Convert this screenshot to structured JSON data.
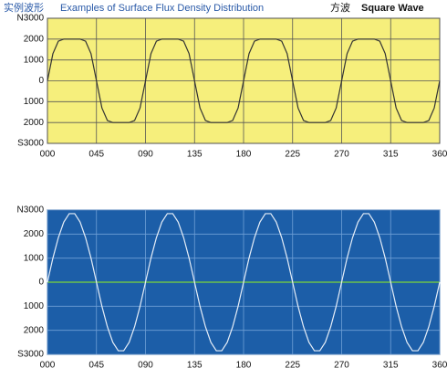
{
  "header": {
    "label_cn": "实例波形",
    "title": "Examples of Surface Flux Density Distribution",
    "wave_cn": "方波",
    "wave_en": "Square Wave"
  },
  "chart_data": [
    {
      "type": "line",
      "background": "#f6ef7c",
      "grid_color": "#555555",
      "border_color": "#444444",
      "tick_label_color": "#111111",
      "x": [
        0,
        5,
        10,
        15,
        20,
        25,
        30,
        35,
        40,
        45,
        50,
        55,
        60,
        65,
        70,
        75,
        80,
        85,
        90,
        95,
        100,
        105,
        110,
        115,
        120,
        125,
        130,
        135,
        140,
        145,
        150,
        155,
        160,
        165,
        170,
        175,
        180,
        185,
        190,
        195,
        200,
        205,
        210,
        215,
        220,
        225,
        230,
        235,
        240,
        245,
        250,
        255,
        260,
        265,
        270,
        275,
        280,
        285,
        290,
        295,
        300,
        305,
        310,
        315,
        320,
        325,
        330,
        335,
        340,
        345,
        350,
        355,
        360
      ],
      "series": [
        {
          "color": "#333333",
          "values": [
            0,
            1300,
            1900,
            2000,
            2000,
            2000,
            2000,
            1900,
            1300,
            0,
            -1300,
            -1900,
            -2000,
            -2000,
            -2000,
            -2000,
            -1900,
            -1300,
            0,
            1300,
            1900,
            2000,
            2000,
            2000,
            2000,
            1900,
            1300,
            0,
            -1300,
            -1900,
            -2000,
            -2000,
            -2000,
            -2000,
            -1900,
            -1300,
            0,
            1300,
            1900,
            2000,
            2000,
            2000,
            2000,
            1900,
            1300,
            0,
            -1300,
            -1900,
            -2000,
            -2000,
            -2000,
            -2000,
            -1900,
            -1300,
            0,
            1300,
            1900,
            2000,
            2000,
            2000,
            2000,
            1900,
            1300,
            0,
            -1300,
            -1900,
            -2000,
            -2000,
            -2000,
            -2000,
            -1900,
            -1300,
            0
          ]
        }
      ],
      "xlim": [
        0,
        360
      ],
      "xticks": [
        {
          "value": 0,
          "label": "000"
        },
        {
          "value": 45,
          "label": "045"
        },
        {
          "value": 90,
          "label": "090"
        },
        135,
        180,
        225,
        270,
        315,
        360
      ],
      "ylim": [
        -3000,
        3000
      ],
      "yticks": [
        {
          "value": 3000,
          "label": "N3000"
        },
        2000,
        1000,
        0,
        {
          "value": -1000,
          "label": "1000"
        },
        {
          "value": -2000,
          "label": "2000"
        },
        {
          "value": -3000,
          "label": "S3000"
        }
      ],
      "grid": true
    },
    {
      "type": "line",
      "background": "#1c5ea8",
      "grid_color": "#6f9fd6",
      "border_color": "#0f3f78",
      "zero_line_color": "#6cc24a",
      "x": [
        0,
        5,
        10,
        15,
        20,
        25,
        30,
        35,
        40,
        45,
        50,
        55,
        60,
        65,
        70,
        75,
        80,
        85,
        90,
        95,
        100,
        105,
        110,
        115,
        120,
        125,
        130,
        135,
        140,
        145,
        150,
        155,
        160,
        165,
        170,
        175,
        180,
        185,
        190,
        195,
        200,
        205,
        210,
        215,
        220,
        225,
        230,
        235,
        240,
        245,
        250,
        255,
        260,
        265,
        270,
        275,
        280,
        285,
        290,
        295,
        300,
        305,
        310,
        315,
        320,
        325,
        330,
        335,
        340,
        345,
        350,
        355,
        360
      ],
      "series": [
        {
          "color": "#e6eef8",
          "values": [
            0,
            1000,
            1850,
            2500,
            2850,
            2850,
            2500,
            1850,
            1000,
            0,
            -1000,
            -1850,
            -2500,
            -2850,
            -2850,
            -2500,
            -1850,
            -1000,
            0,
            1000,
            1850,
            2500,
            2850,
            2850,
            2500,
            1850,
            1000,
            0,
            -1000,
            -1850,
            -2500,
            -2850,
            -2850,
            -2500,
            -1850,
            -1000,
            0,
            1000,
            1850,
            2500,
            2850,
            2850,
            2500,
            1850,
            1000,
            0,
            -1000,
            -1850,
            -2500,
            -2850,
            -2850,
            -2500,
            -1850,
            -1000,
            0,
            1000,
            1850,
            2500,
            2850,
            2850,
            2500,
            1850,
            1000,
            0,
            -1000,
            -1850,
            -2500,
            -2850,
            -2850,
            -2500,
            -1850,
            -1000,
            0
          ]
        }
      ],
      "xlim": [
        0,
        360
      ],
      "xticks": [
        {
          "value": 0,
          "label": "000"
        },
        {
          "value": 45,
          "label": "045"
        },
        {
          "value": 90,
          "label": "090"
        },
        135,
        180,
        225,
        270,
        315,
        360
      ],
      "ylim": [
        -3000,
        3000
      ],
      "yticks": [
        {
          "value": 3000,
          "label": "N3000"
        },
        2000,
        1000,
        0,
        {
          "value": -1000,
          "label": "1000"
        },
        {
          "value": -2000,
          "label": "2000"
        },
        {
          "value": -3000,
          "label": "S3000"
        }
      ],
      "grid": true
    }
  ]
}
